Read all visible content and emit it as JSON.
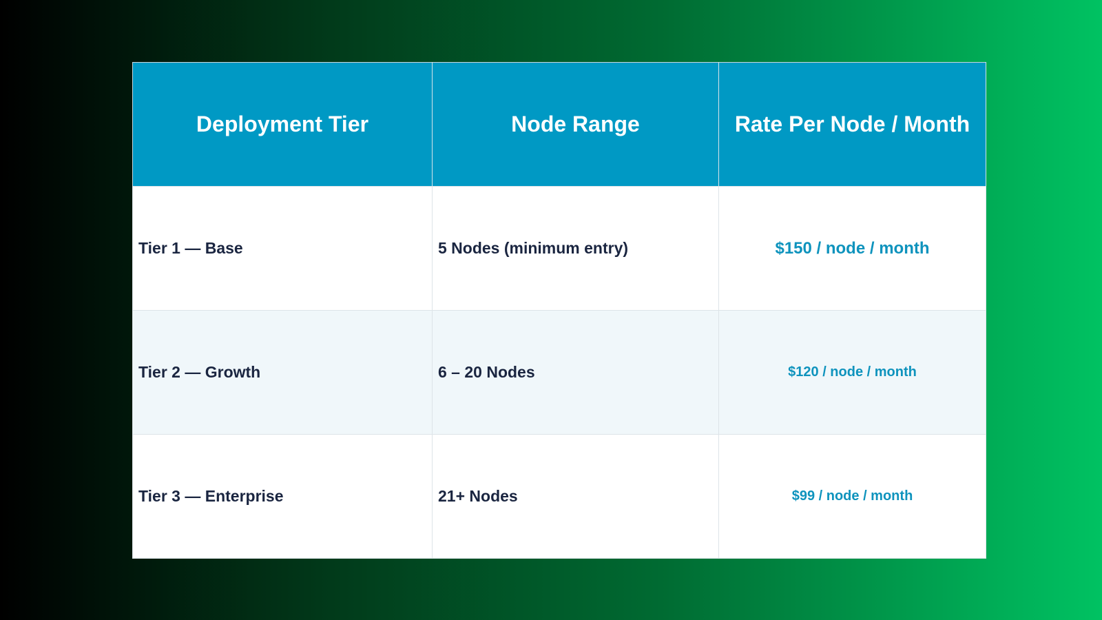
{
  "table": {
    "headers": [
      "Deployment Tier",
      "Node Range",
      "Rate Per Node / Month"
    ],
    "rows": [
      [
        "Tier 1 — Base",
        "5 Nodes (minimum entry)",
        "$150 / node / month"
      ],
      [
        "Tier 2 — Growth",
        "6 – 20 Nodes",
        "$120 / node / month"
      ],
      [
        "Tier 3 — Enterprise",
        "21+ Nodes",
        "$99 / node / month"
      ]
    ]
  }
}
